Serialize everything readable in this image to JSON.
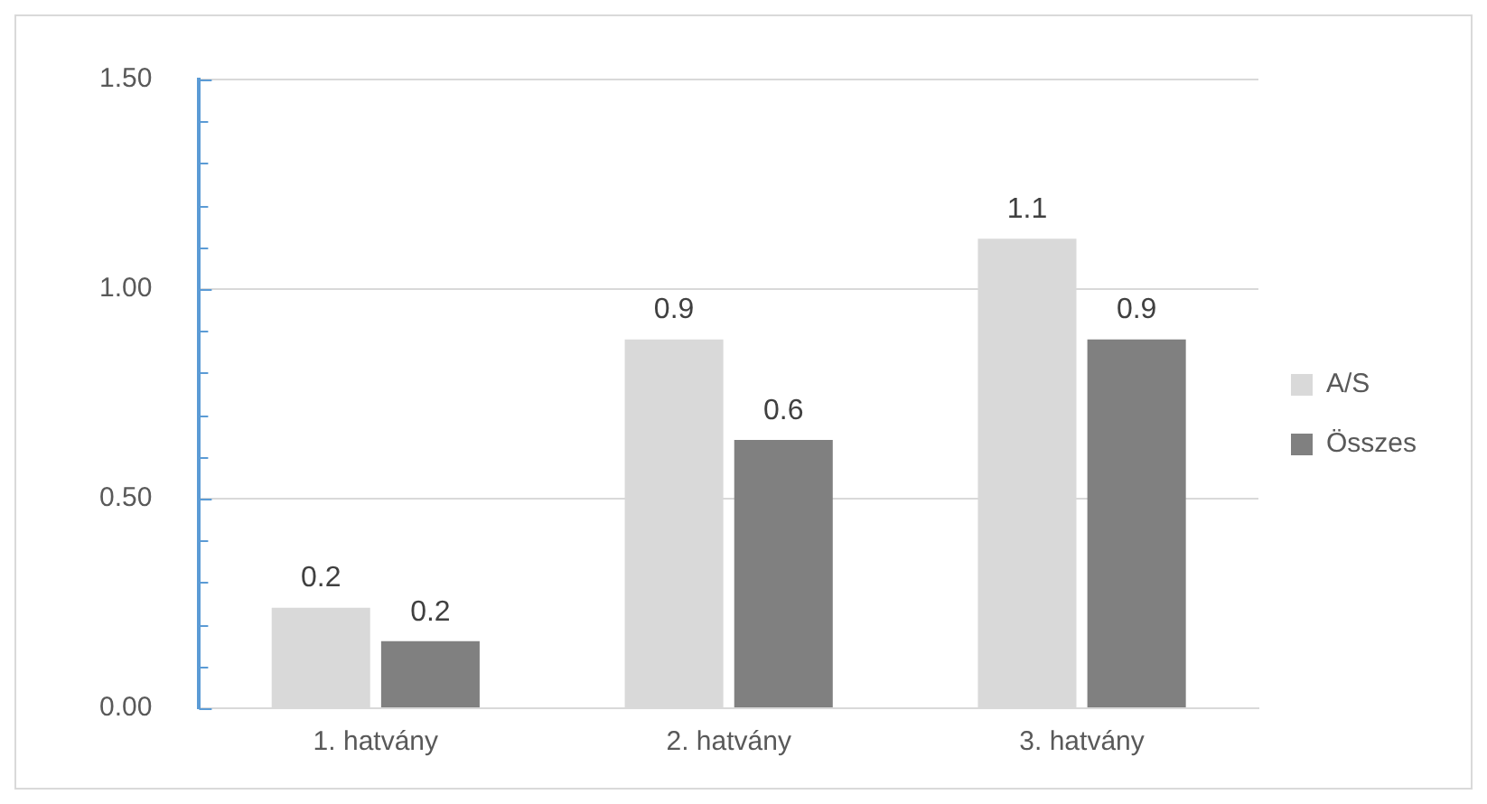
{
  "chart_data": {
    "type": "bar",
    "categories": [
      "1. hatvány",
      "2. hatvány",
      "3. hatvány"
    ],
    "series": [
      {
        "name": "A/S",
        "color": "#d9d9d9",
        "values": [
          0.24,
          0.88,
          1.12
        ],
        "value_labels": [
          "0.2",
          "0.9",
          "1.1"
        ]
      },
      {
        "name": "Összes",
        "color": "#808080",
        "values": [
          0.16,
          0.64,
          0.88
        ],
        "value_labels": [
          "0.2",
          "0.6",
          "0.9"
        ]
      }
    ],
    "ylim": [
      0,
      1.5
    ],
    "yticks": [
      {
        "value": 0,
        "label": "0.00"
      },
      {
        "value": 0.1,
        "label": null
      },
      {
        "value": 0.2,
        "label": null
      },
      {
        "value": 0.3,
        "label": null
      },
      {
        "value": 0.4,
        "label": null
      },
      {
        "value": 0.5,
        "label": "0.50"
      },
      {
        "value": 0.6,
        "label": null
      },
      {
        "value": 0.7,
        "label": null
      },
      {
        "value": 0.8,
        "label": null
      },
      {
        "value": 0.9,
        "label": null
      },
      {
        "value": 1,
        "label": "1.00"
      },
      {
        "value": 1.1,
        "label": null
      },
      {
        "value": 1.2,
        "label": null
      },
      {
        "value": 1.3,
        "label": null
      },
      {
        "value": 1.4,
        "label": null
      },
      {
        "value": 1.5,
        "label": "1.50"
      }
    ],
    "grid": "y",
    "legend": "right"
  }
}
